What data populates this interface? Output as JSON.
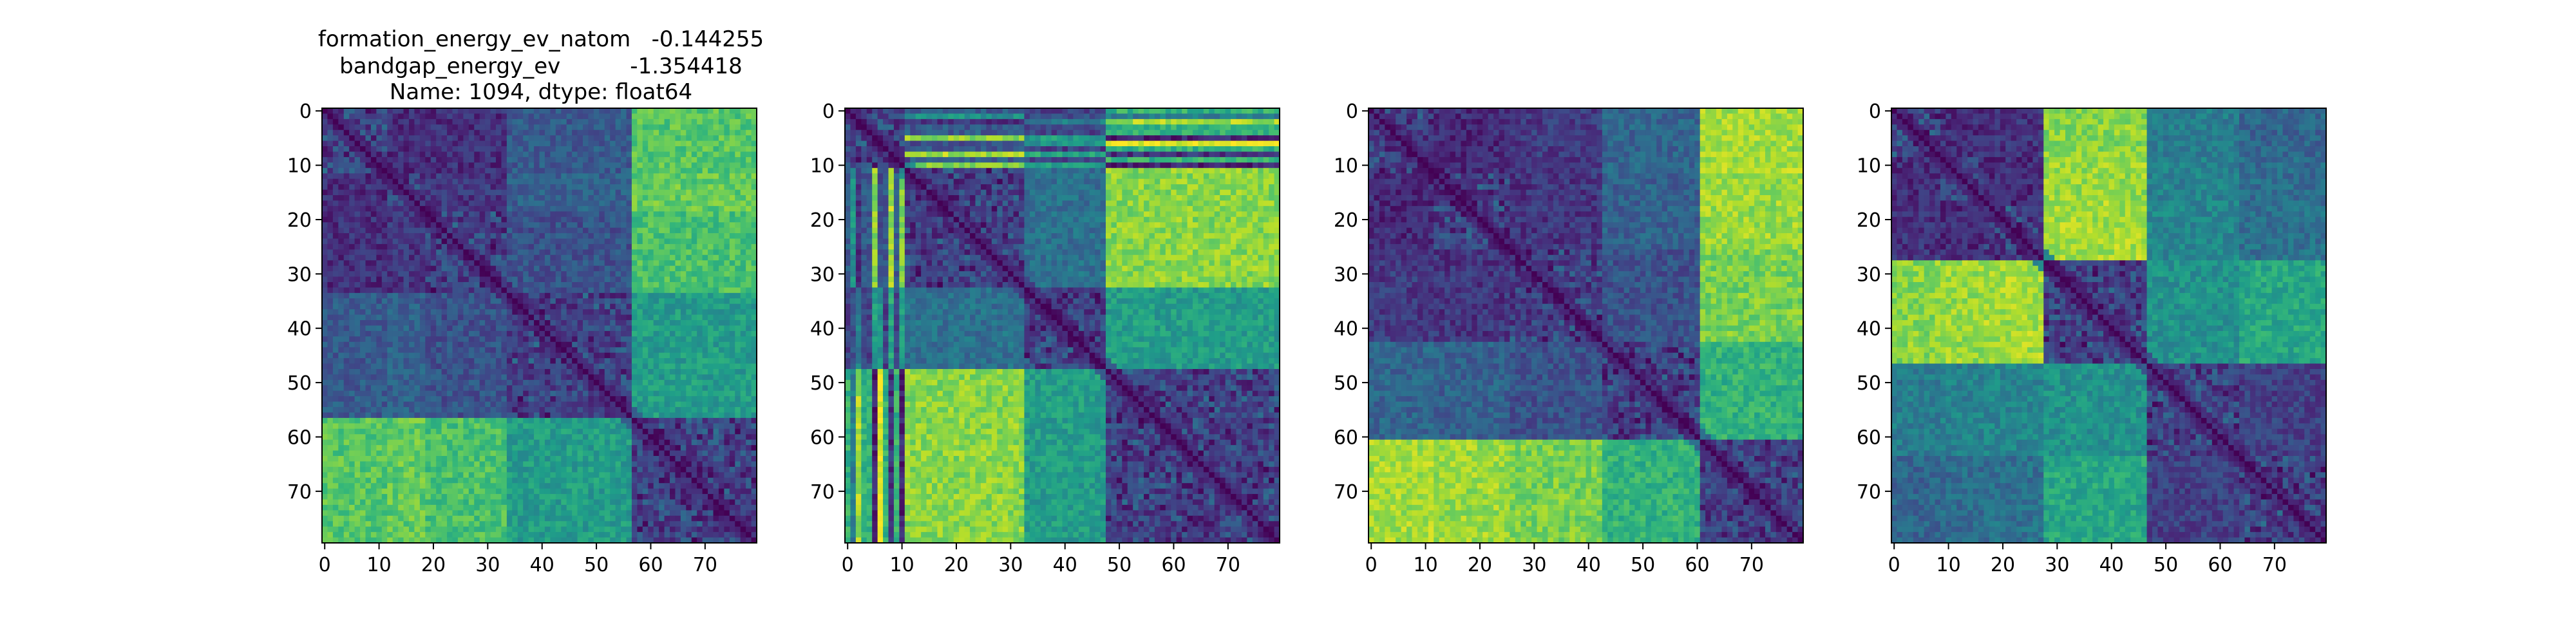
{
  "figure_title": {
    "line1": "formation_energy_ev_natom   -0.144255",
    "line2": "bandgap_energy_ev          -1.354418",
    "line3": "Name: 1094, dtype: float64"
  },
  "colors": {
    "axis": "#000000",
    "background": "#ffffff",
    "colormap": "viridis",
    "cmap_stops": [
      "#440154",
      "#482878",
      "#3e4a89",
      "#31688e",
      "#26828e",
      "#1f9e89",
      "#35b779",
      "#6ece58",
      "#b5de2b",
      "#fde725"
    ]
  },
  "chart_data": [
    {
      "type": "heatmap",
      "title": "",
      "matrix_size": 80,
      "xlim": [
        0,
        80
      ],
      "ylim": [
        80,
        0
      ],
      "xticks": [
        0,
        10,
        20,
        30,
        40,
        50,
        60,
        70
      ],
      "yticks": [
        0,
        10,
        20,
        30,
        40,
        50,
        60,
        70
      ],
      "xtick_labels": [
        "0",
        "10",
        "20",
        "30",
        "40",
        "50",
        "60",
        "70"
      ],
      "ytick_labels": [
        "0",
        "10",
        "20",
        "30",
        "40",
        "50",
        "60",
        "70"
      ],
      "blocks": [
        {
          "start": 0,
          "end": 12,
          "pos": 0.25
        },
        {
          "start": 12,
          "end": 19,
          "pos": 0.22
        },
        {
          "start": 19,
          "end": 34,
          "pos": 0.28
        },
        {
          "start": 34,
          "end": 57,
          "pos": 0.45
        },
        {
          "start": 57,
          "end": 80,
          "pos": 0.95
        }
      ],
      "outliers": [],
      "value_range": [
        0,
        1
      ]
    },
    {
      "type": "heatmap",
      "title": "",
      "matrix_size": 80,
      "xlim": [
        0,
        80
      ],
      "ylim": [
        80,
        0
      ],
      "xticks": [
        0,
        10,
        20,
        30,
        40,
        50,
        60,
        70
      ],
      "yticks": [
        0,
        10,
        20,
        30,
        40,
        50,
        60,
        70
      ],
      "xtick_labels": [
        "0",
        "10",
        "20",
        "30",
        "40",
        "50",
        "60",
        "70"
      ],
      "ytick_labels": [
        "0",
        "10",
        "20",
        "30",
        "40",
        "50",
        "60",
        "70"
      ],
      "blocks": [
        {
          "start": 0,
          "end": 11,
          "pos": 0.35
        },
        {
          "start": 11,
          "end": 33,
          "pos": 0.15
        },
        {
          "start": 33,
          "end": 48,
          "pos": 0.45
        },
        {
          "start": 48,
          "end": 80,
          "pos": 0.95
        }
      ],
      "outliers": [
        {
          "index": 1,
          "pos": 0.6
        },
        {
          "index": 2,
          "pos": 0.1
        },
        {
          "index": 5,
          "pos": 0.95
        },
        {
          "index": 6,
          "pos": 0.0
        },
        {
          "index": 8,
          "pos": 1.0
        },
        {
          "index": 10,
          "pos": 0.95
        }
      ],
      "value_range": [
        0,
        1
      ]
    },
    {
      "type": "heatmap",
      "title": "",
      "matrix_size": 80,
      "xlim": [
        0,
        80
      ],
      "ylim": [
        80,
        0
      ],
      "xticks": [
        0,
        10,
        20,
        30,
        40,
        50,
        60,
        70
      ],
      "yticks": [
        0,
        10,
        20,
        30,
        40,
        50,
        60,
        70
      ],
      "xtick_labels": [
        "0",
        "10",
        "20",
        "30",
        "40",
        "50",
        "60",
        "70"
      ],
      "ytick_labels": [
        "0",
        "10",
        "20",
        "30",
        "40",
        "50",
        "60",
        "70"
      ],
      "blocks": [
        {
          "start": 0,
          "end": 12,
          "pos": 0.1
        },
        {
          "start": 12,
          "end": 26,
          "pos": 0.12
        },
        {
          "start": 26,
          "end": 43,
          "pos": 0.18
        },
        {
          "start": 43,
          "end": 61,
          "pos": 0.35
        },
        {
          "start": 61,
          "end": 80,
          "pos": 0.95
        }
      ],
      "outliers": [],
      "value_range": [
        0,
        1
      ]
    },
    {
      "type": "heatmap",
      "title": "",
      "matrix_size": 80,
      "xlim": [
        0,
        80
      ],
      "ylim": [
        80,
        0
      ],
      "xticks": [
        0,
        10,
        20,
        30,
        40,
        50,
        60,
        70
      ],
      "yticks": [
        0,
        10,
        20,
        30,
        40,
        50,
        60,
        70
      ],
      "xtick_labels": [
        "0",
        "10",
        "20",
        "30",
        "40",
        "50",
        "60",
        "70"
      ],
      "ytick_labels": [
        "0",
        "10",
        "20",
        "30",
        "40",
        "50",
        "60",
        "70"
      ],
      "blocks": [
        {
          "start": 0,
          "end": 9,
          "pos": 0.15
        },
        {
          "start": 9,
          "end": 17,
          "pos": 0.12
        },
        {
          "start": 17,
          "end": 28,
          "pos": 0.1
        },
        {
          "start": 28,
          "end": 47,
          "pos": 0.95
        },
        {
          "start": 47,
          "end": 64,
          "pos": 0.5
        },
        {
          "start": 64,
          "end": 80,
          "pos": 0.4
        }
      ],
      "outliers": [],
      "value_range": [
        0,
        1
      ]
    }
  ]
}
